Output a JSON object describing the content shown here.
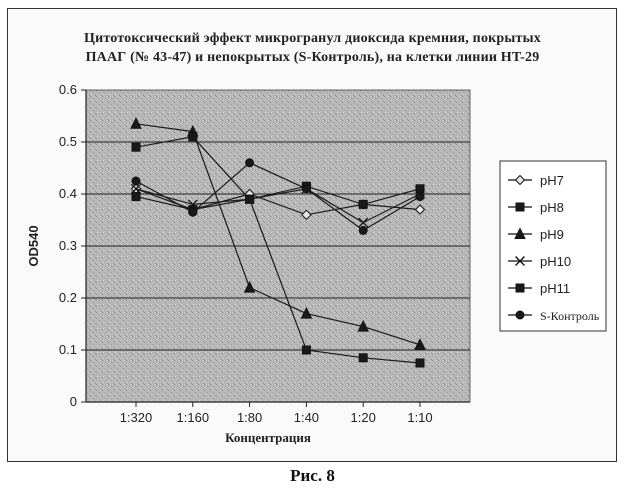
{
  "chart_data": {
    "type": "line",
    "title_lines": [
      "Цитотоксический эффект микрогранул диоксида кремния, покрытых",
      "ПААГ (№ 43-47) и непокрытых (S-Контроль), на клетки линии HT-29"
    ],
    "xlabel": "Концентрация",
    "ylabel": "OD540",
    "categories": [
      "1:320",
      "1:160",
      "1:80",
      "1:40",
      "1:20",
      "1:10"
    ],
    "ylim": [
      0,
      0.6
    ],
    "yticks": [
      "0",
      "0.1",
      "0.2",
      "0.3",
      "0.4",
      "0.5",
      "0.6"
    ],
    "grid": "horizontal",
    "legend_position": "right",
    "series": [
      {
        "name": "pH7",
        "marker": "diamond",
        "values": [
          0.41,
          0.37,
          0.4,
          0.36,
          0.38,
          0.37
        ]
      },
      {
        "name": "pH8",
        "marker": "square",
        "values": [
          0.395,
          0.37,
          0.39,
          0.415,
          0.38,
          0.41
        ]
      },
      {
        "name": "pH9",
        "marker": "triangle",
        "values": [
          0.535,
          0.52,
          0.22,
          0.17,
          0.145,
          0.11
        ]
      },
      {
        "name": "pH10",
        "marker": "x",
        "values": [
          0.41,
          0.38,
          0.39,
          0.41,
          0.345,
          0.4
        ]
      },
      {
        "name": "pH11",
        "marker": "square",
        "values": [
          0.49,
          0.51,
          0.39,
          0.1,
          0.085,
          0.075
        ]
      },
      {
        "name": "S-Контроль",
        "marker": "circle",
        "values": [
          0.425,
          0.365,
          0.46,
          0.41,
          0.33,
          0.395
        ]
      }
    ],
    "colors": {
      "plot_background": "#bdbdbd",
      "line": "#1a1a1a",
      "grid": "#222222"
    }
  },
  "caption": "Рис. 8"
}
